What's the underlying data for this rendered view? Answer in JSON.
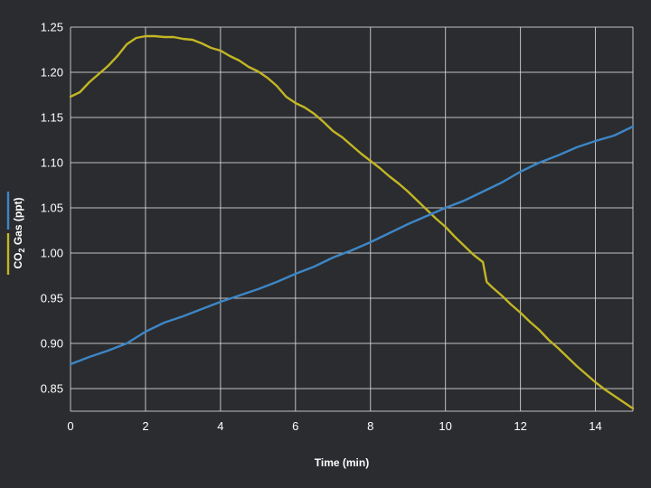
{
  "chart_data": {
    "type": "line",
    "title": "",
    "xlabel": "Time (min)",
    "ylabel_parts": {
      "pre": "CO",
      "sub": "2",
      "post": " Gas  (ppt)"
    },
    "xlim": [
      0,
      15
    ],
    "ylim": [
      0.825,
      1.25
    ],
    "xticks": [
      0,
      2,
      4,
      6,
      8,
      10,
      12,
      14
    ],
    "yticks": [
      0.85,
      0.9,
      0.95,
      1.0,
      1.05,
      1.1,
      1.15,
      1.2,
      1.25
    ],
    "ytick_labels": [
      "0.85",
      "0.90",
      "0.95",
      "1.00",
      "1.05",
      "1.10",
      "1.15",
      "1.20",
      "1.25"
    ],
    "grid": true,
    "colors": {
      "background": "#2b2c2f",
      "grid": "#d9d9d9",
      "text": "#ffffff"
    },
    "series": [
      {
        "color": "#c2b625",
        "x": [
          0,
          0.25,
          0.5,
          0.75,
          1.0,
          1.25,
          1.5,
          1.75,
          2.0,
          2.25,
          2.5,
          2.75,
          3.0,
          3.25,
          3.5,
          3.75,
          4.0,
          4.25,
          4.5,
          4.75,
          5.0,
          5.25,
          5.5,
          5.75,
          6.0,
          6.25,
          6.5,
          6.75,
          7.0,
          7.25,
          7.5,
          7.75,
          8.0,
          8.25,
          8.5,
          8.75,
          9.0,
          9.25,
          9.5,
          9.75,
          10.0,
          10.25,
          10.5,
          10.75,
          11.0,
          11.1,
          11.25,
          11.5,
          11.75,
          12.0,
          12.25,
          12.5,
          12.75,
          13.0,
          13.25,
          13.5,
          13.75,
          14.0,
          14.25,
          14.5,
          14.75,
          15.0
        ],
        "values": [
          1.173,
          1.178,
          1.189,
          1.198,
          1.207,
          1.218,
          1.231,
          1.238,
          1.24,
          1.24,
          1.239,
          1.239,
          1.237,
          1.236,
          1.232,
          1.227,
          1.224,
          1.218,
          1.213,
          1.206,
          1.201,
          1.194,
          1.185,
          1.173,
          1.166,
          1.161,
          1.154,
          1.145,
          1.135,
          1.128,
          1.119,
          1.11,
          1.102,
          1.094,
          1.085,
          1.077,
          1.068,
          1.058,
          1.048,
          1.038,
          1.029,
          1.018,
          1.008,
          0.998,
          0.99,
          0.968,
          0.962,
          0.953,
          0.943,
          0.934,
          0.924,
          0.915,
          0.904,
          0.895,
          0.885,
          0.875,
          0.866,
          0.857,
          0.849,
          0.842,
          0.835,
          0.828
        ]
      },
      {
        "color": "#3d86c6",
        "x": [
          0,
          0.5,
          1.0,
          1.5,
          2.0,
          2.5,
          3.0,
          3.5,
          4.0,
          4.5,
          5.0,
          5.5,
          6.0,
          6.5,
          7.0,
          7.5,
          8.0,
          8.5,
          9.0,
          9.5,
          10.0,
          10.5,
          11.0,
          11.5,
          12.0,
          12.5,
          13.0,
          13.5,
          14.0,
          14.5,
          15.0
        ],
        "values": [
          0.877,
          0.885,
          0.892,
          0.9,
          0.913,
          0.923,
          0.93,
          0.938,
          0.946,
          0.953,
          0.96,
          0.968,
          0.977,
          0.985,
          0.995,
          1.003,
          1.012,
          1.022,
          1.032,
          1.041,
          1.05,
          1.058,
          1.068,
          1.078,
          1.09,
          1.1,
          1.108,
          1.117,
          1.124,
          1.13,
          1.14
        ]
      }
    ]
  }
}
